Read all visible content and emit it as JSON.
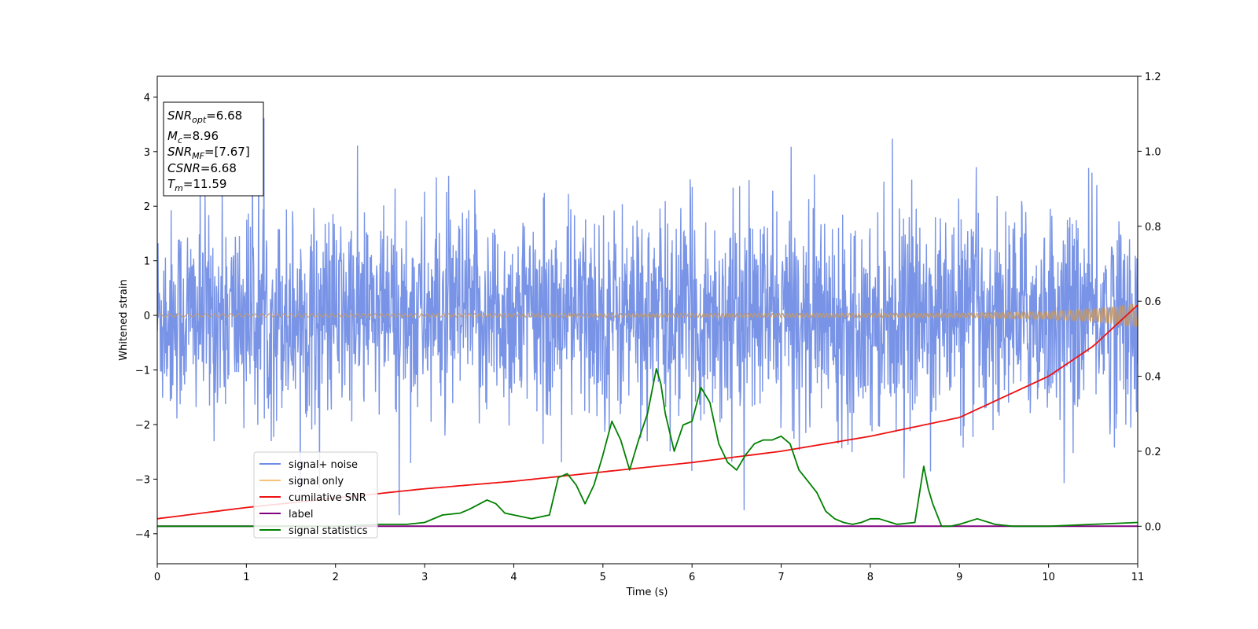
{
  "chart_data": {
    "type": "line",
    "xlabel": "Time (s)",
    "ylabel": "Whitened strain",
    "xlim": [
      0,
      11
    ],
    "ylim": [
      -4.55,
      4.38
    ],
    "y2lim": [
      -0.1,
      1.2
    ],
    "xticks": [
      0,
      1,
      2,
      3,
      4,
      5,
      6,
      7,
      8,
      9,
      10,
      11
    ],
    "yticks": [
      -4,
      -3,
      -2,
      -1,
      0,
      1,
      2,
      3,
      4
    ],
    "y2ticks": [
      "0.0",
      "0.2",
      "0.4",
      "0.6",
      "0.8",
      "1.0",
      "1.2"
    ],
    "grid": false,
    "legend_position": "lower-left",
    "legend": [
      {
        "label": "signal+ noise",
        "color": "#6f8ee6"
      },
      {
        "label": "signal only",
        "color": "#f5c27a"
      },
      {
        "label": "cumilative SNR",
        "color": "#ee1111"
      },
      {
        "label": "label",
        "color": "#800080"
      },
      {
        "label": "signal statistics",
        "color": "#008000"
      }
    ],
    "colors": {
      "noise_fill": "#7994e6",
      "signal_fill": "#c49a6c",
      "cumulative_snr": "#ee1111",
      "label": "#800080",
      "signal_statistics": "#008000"
    },
    "series": [
      {
        "name": "signal+ noise",
        "axis": "left",
        "description_values": {
          "typical_envelope": [
            -1.9,
            2.1
          ],
          "peak_max": 4.0,
          "peak_min": -4.15
        }
      },
      {
        "name": "signal only",
        "axis": "left",
        "amplitude_x": [
          0,
          9,
          10,
          10.5,
          11
        ],
        "amplitude": [
          0.03,
          0.04,
          0.07,
          0.12,
          0.22
        ]
      },
      {
        "name": "cumilative SNR",
        "axis": "right",
        "x": [
          0,
          1,
          2,
          3,
          4,
          5,
          6,
          7,
          8,
          9,
          10,
          10.5,
          11
        ],
        "y": [
          0.02,
          0.05,
          0.075,
          0.1,
          0.12,
          0.145,
          0.17,
          0.2,
          0.24,
          0.29,
          0.4,
          0.48,
          0.59
        ]
      },
      {
        "name": "label",
        "axis": "right",
        "x": [
          0,
          11
        ],
        "y": [
          0.0,
          0.0
        ]
      },
      {
        "name": "signal statistics",
        "axis": "right",
        "x": [
          0,
          0.5,
          1,
          1.5,
          2,
          2.5,
          2.8,
          3,
          3.2,
          3.4,
          3.5,
          3.7,
          3.8,
          3.9,
          4.0,
          4.2,
          4.3,
          4.4,
          4.5,
          4.6,
          4.7,
          4.8,
          4.9,
          5.0,
          5.1,
          5.2,
          5.3,
          5.4,
          5.5,
          5.6,
          5.65,
          5.7,
          5.8,
          5.9,
          6.0,
          6.1,
          6.2,
          6.3,
          6.4,
          6.5,
          6.6,
          6.7,
          6.8,
          6.9,
          7.0,
          7.1,
          7.2,
          7.3,
          7.4,
          7.5,
          7.6,
          7.7,
          7.8,
          7.9,
          8.0,
          8.1,
          8.3,
          8.5,
          8.6,
          8.65,
          8.7,
          8.8,
          8.9,
          9.0,
          9.2,
          9.4,
          9.6,
          10.0,
          10.5,
          11.0
        ],
        "y": [
          0.0,
          0.0,
          0.0,
          0.0,
          0.0,
          0.005,
          0.005,
          0.01,
          0.03,
          0.035,
          0.045,
          0.07,
          0.06,
          0.035,
          0.03,
          0.02,
          0.025,
          0.03,
          0.13,
          0.14,
          0.11,
          0.06,
          0.11,
          0.19,
          0.28,
          0.23,
          0.15,
          0.23,
          0.3,
          0.42,
          0.38,
          0.3,
          0.2,
          0.27,
          0.28,
          0.37,
          0.33,
          0.22,
          0.17,
          0.15,
          0.19,
          0.22,
          0.23,
          0.23,
          0.24,
          0.22,
          0.15,
          0.12,
          0.09,
          0.04,
          0.02,
          0.01,
          0.005,
          0.01,
          0.02,
          0.02,
          0.005,
          0.01,
          0.16,
          0.1,
          0.06,
          0.0,
          0.0,
          0.005,
          0.02,
          0.005,
          0.0,
          0.0,
          0.005,
          0.01
        ]
      }
    ]
  },
  "info_box": {
    "snr_opt_label": "SNR",
    "snr_opt_sub": "opt",
    "snr_opt_value": "=6.68",
    "mc_label": "M",
    "mc_sub": "c",
    "mc_value": "=8.96",
    "snr_mf_label": "SNR",
    "snr_mf_sub": "MF",
    "snr_mf_value": "=[7.67]",
    "csnr_label": "CSNR",
    "csnr_value": "=6.68",
    "tm_label": "T",
    "tm_sub": "m",
    "tm_value": "=11.59"
  }
}
